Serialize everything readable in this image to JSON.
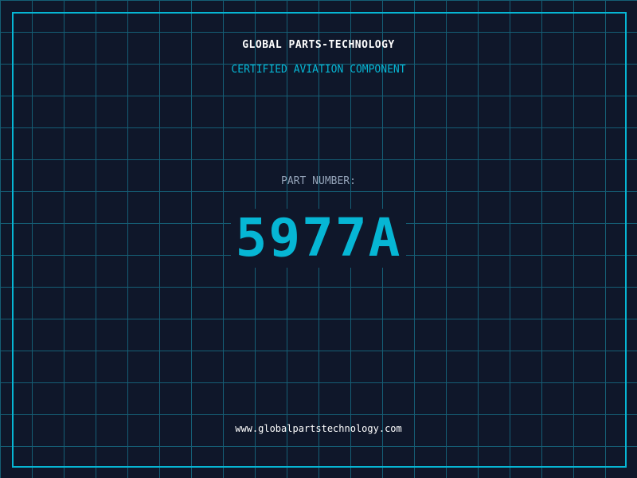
{
  "header": {
    "brand": "GLOBAL PARTS-TECHNOLOGY",
    "subtitle": "CERTIFIED AVIATION COMPONENT"
  },
  "part": {
    "label": "PART NUMBER:",
    "number": "5977A"
  },
  "footer": {
    "url": "www.globalpartstechnology.com"
  },
  "colors": {
    "background": "#0f172a",
    "accent": "#06b6d4",
    "grid": "#155e75"
  }
}
